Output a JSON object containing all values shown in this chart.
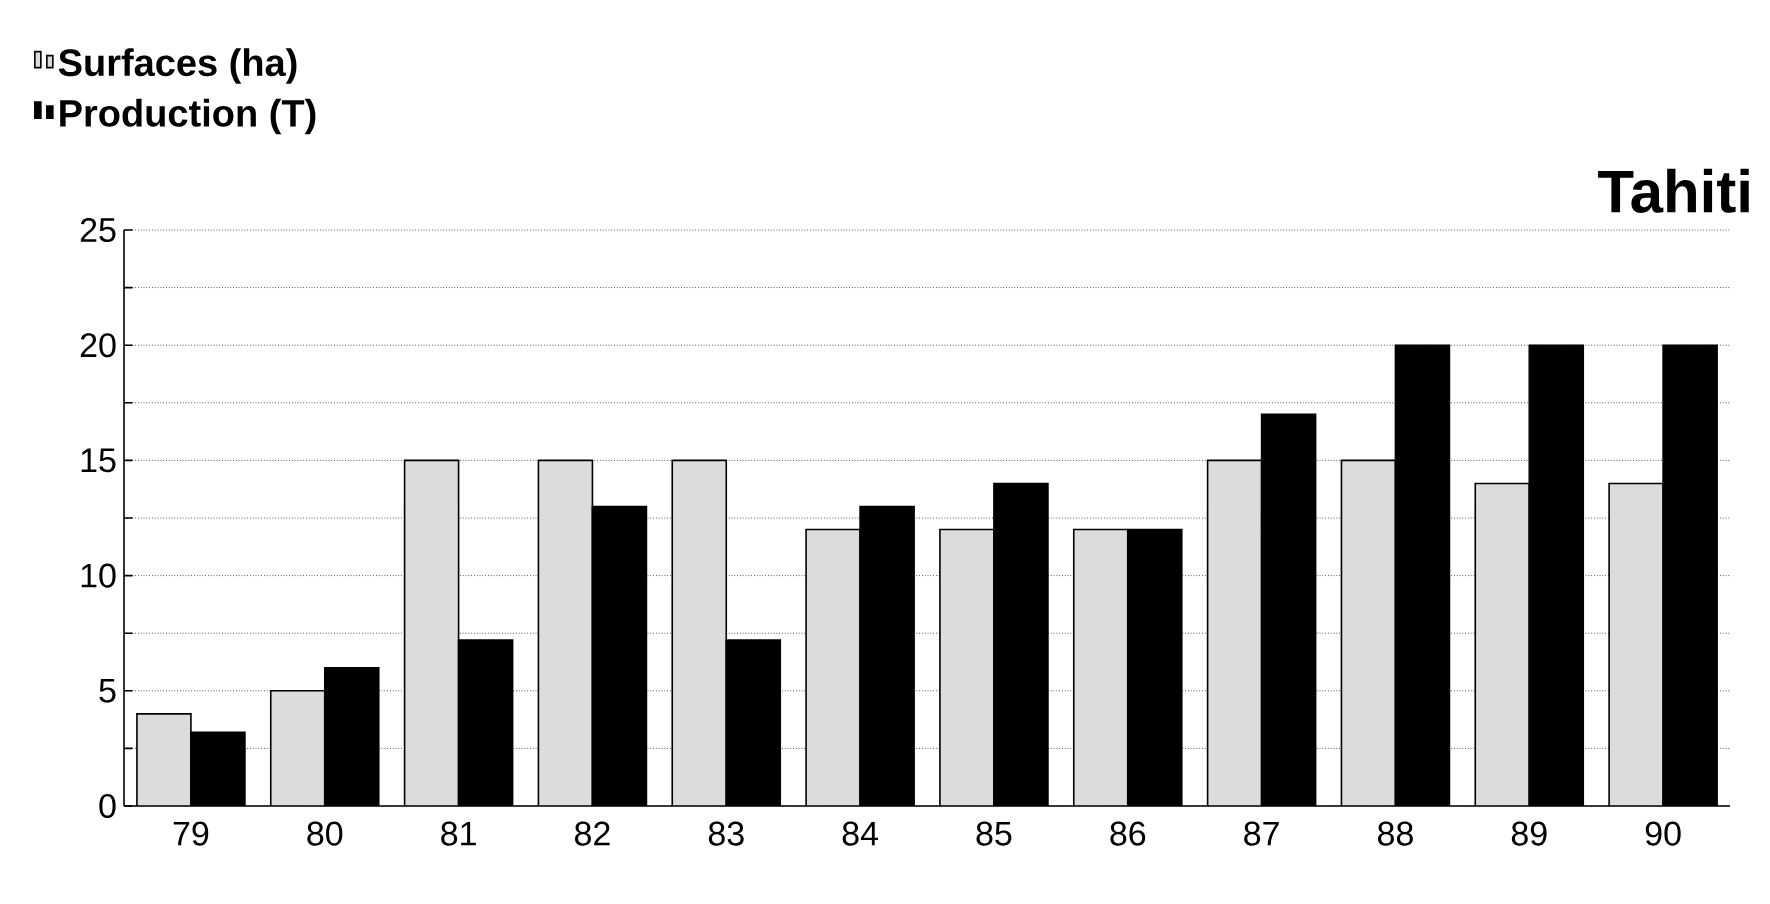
{
  "chart_data": {
    "type": "bar",
    "title": "Tahiti",
    "categories": [
      "79",
      "80",
      "81",
      "82",
      "83",
      "84",
      "85",
      "86",
      "87",
      "88",
      "89",
      "90"
    ],
    "series": [
      {
        "name": "Surfaces (ha)",
        "color": "#dcdcdc",
        "values": [
          4,
          5,
          15,
          15,
          15,
          12,
          12,
          12,
          15,
          15,
          14,
          14
        ]
      },
      {
        "name": "Production (T)",
        "color": "#000000",
        "values": [
          3.2,
          6,
          7.2,
          13,
          7.2,
          13,
          14,
          12,
          17,
          20,
          20,
          20
        ]
      }
    ],
    "ylim": [
      0,
      25
    ],
    "yticks": [
      0,
      {
        "value": 2.5,
        "label": null
      },
      5,
      {
        "value": 7.5,
        "label": null
      },
      10,
      {
        "value": 12.5,
        "label": null
      },
      15,
      {
        "value": 17.5,
        "label": null
      },
      20,
      {
        "value": 22.5,
        "label": null
      },
      25
    ],
    "grid": "y",
    "legend": "top left"
  }
}
